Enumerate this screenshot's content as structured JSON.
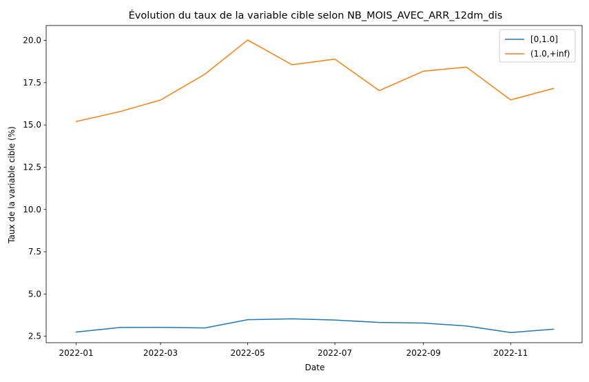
{
  "chart_data": {
    "type": "line",
    "title": "Évolution du taux de la variable cible selon NB_MOIS_AVEC_ARR_12dm_dis",
    "xlabel": "Date",
    "ylabel": "Taux de la variable cible (%)",
    "x": [
      "2022-01",
      "2022-02",
      "2022-03",
      "2022-04",
      "2022-05",
      "2022-06",
      "2022-07",
      "2022-08",
      "2022-09",
      "2022-10",
      "2022-11",
      "2022-12"
    ],
    "xticks": [
      "2022-01",
      "2022-03",
      "2022-05",
      "2022-07",
      "2022-09",
      "2022-11"
    ],
    "xlim": [
      "2021-12-11",
      "2022-12-21"
    ],
    "yticks": [
      "2.5",
      "5.0",
      "7.5",
      "10.0",
      "12.5",
      "15.0",
      "17.5",
      "20.0"
    ],
    "ylim": [
      2.12,
      20.88
    ],
    "grid": false,
    "legend_position": "top-right",
    "series": [
      {
        "name": "[0,1.0]",
        "color": "#1f77b4",
        "values": [
          2.75,
          3.02,
          3.03,
          2.99,
          3.48,
          3.53,
          3.46,
          3.32,
          3.28,
          3.11,
          2.72,
          2.92
        ]
      },
      {
        "name": "(1.0,+inf)",
        "color": "#ff7f0e",
        "values": [
          15.2,
          15.8,
          16.47,
          18.0,
          20.02,
          18.56,
          18.89,
          17.03,
          18.18,
          18.42,
          16.48,
          17.16
        ]
      }
    ]
  }
}
